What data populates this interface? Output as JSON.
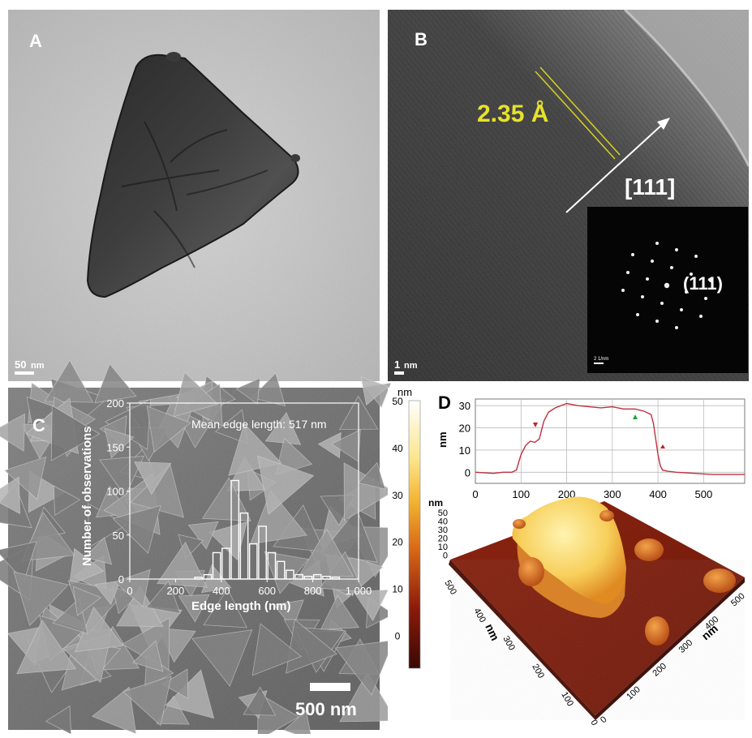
{
  "panels": {
    "a": {
      "letter": "A",
      "scale_value": "50",
      "scale_unit": "nm"
    },
    "b": {
      "letter": "B",
      "spacing": "2.35 Å",
      "direction": "[111]",
      "inset_label": "(111)",
      "inset_scale": "2 1/nm",
      "scale_value": "1",
      "scale_unit": "nm"
    },
    "c": {
      "letter": "C",
      "scale_label": "500 nm"
    },
    "d": {
      "letter": "D",
      "colorbar_unit": "nm",
      "colorbar_ticks": [
        "50",
        "40",
        "30",
        "20",
        "10",
        "0"
      ],
      "z_unit": "nm",
      "z_ticks": [
        "50",
        "40",
        "30",
        "20",
        "10",
        "0"
      ],
      "axis_unit_left": "nm",
      "axis_unit_right": "nm",
      "left_axis_ticks": [
        "500",
        "400",
        "300",
        "200",
        "100",
        "0"
      ],
      "right_axis_ticks": [
        "0",
        "100",
        "200",
        "300",
        "400",
        "500"
      ]
    }
  },
  "chart_data": [
    {
      "type": "bar",
      "annotation": "Mean edge length: 517 nm",
      "xlabel": "Edge length (nm)",
      "ylabel": "Number of observations",
      "xlim": [
        0,
        1000
      ],
      "ylim": [
        0,
        200
      ],
      "xticks": [
        "0",
        "200",
        "400",
        "600",
        "800",
        "1,000"
      ],
      "yticks": [
        "0",
        "50",
        "100",
        "150",
        "200"
      ],
      "bin_width": 40,
      "x": [
        300,
        340,
        380,
        420,
        460,
        500,
        540,
        580,
        620,
        660,
        700,
        740,
        780,
        820,
        860,
        900
      ],
      "values": [
        2,
        5,
        30,
        35,
        112,
        75,
        40,
        60,
        30,
        20,
        10,
        5,
        3,
        5,
        3,
        2
      ]
    },
    {
      "type": "line",
      "xlabel": "",
      "ylabel": "nm",
      "xlim": [
        0,
        590
      ],
      "ylim": [
        -5,
        33
      ],
      "xticks": [
        "0",
        "100",
        "200",
        "300",
        "400",
        "500"
      ],
      "yticks": [
        "0",
        "10",
        "20",
        "30"
      ],
      "x": [
        0,
        40,
        60,
        80,
        90,
        100,
        110,
        120,
        130,
        140,
        150,
        160,
        175,
        200,
        225,
        250,
        275,
        300,
        325,
        350,
        370,
        385,
        390,
        395,
        400,
        405,
        410,
        420,
        440,
        480,
        520,
        560,
        590
      ],
      "y": [
        0,
        -0.5,
        0,
        0,
        1,
        8,
        12,
        14,
        13.5,
        15,
        23,
        27,
        29,
        31,
        30,
        29.5,
        29,
        29.5,
        28.5,
        28.5,
        27.5,
        26,
        22,
        15,
        8,
        3,
        1,
        0.5,
        0,
        -0.5,
        -1,
        -1,
        -1
      ]
    }
  ]
}
